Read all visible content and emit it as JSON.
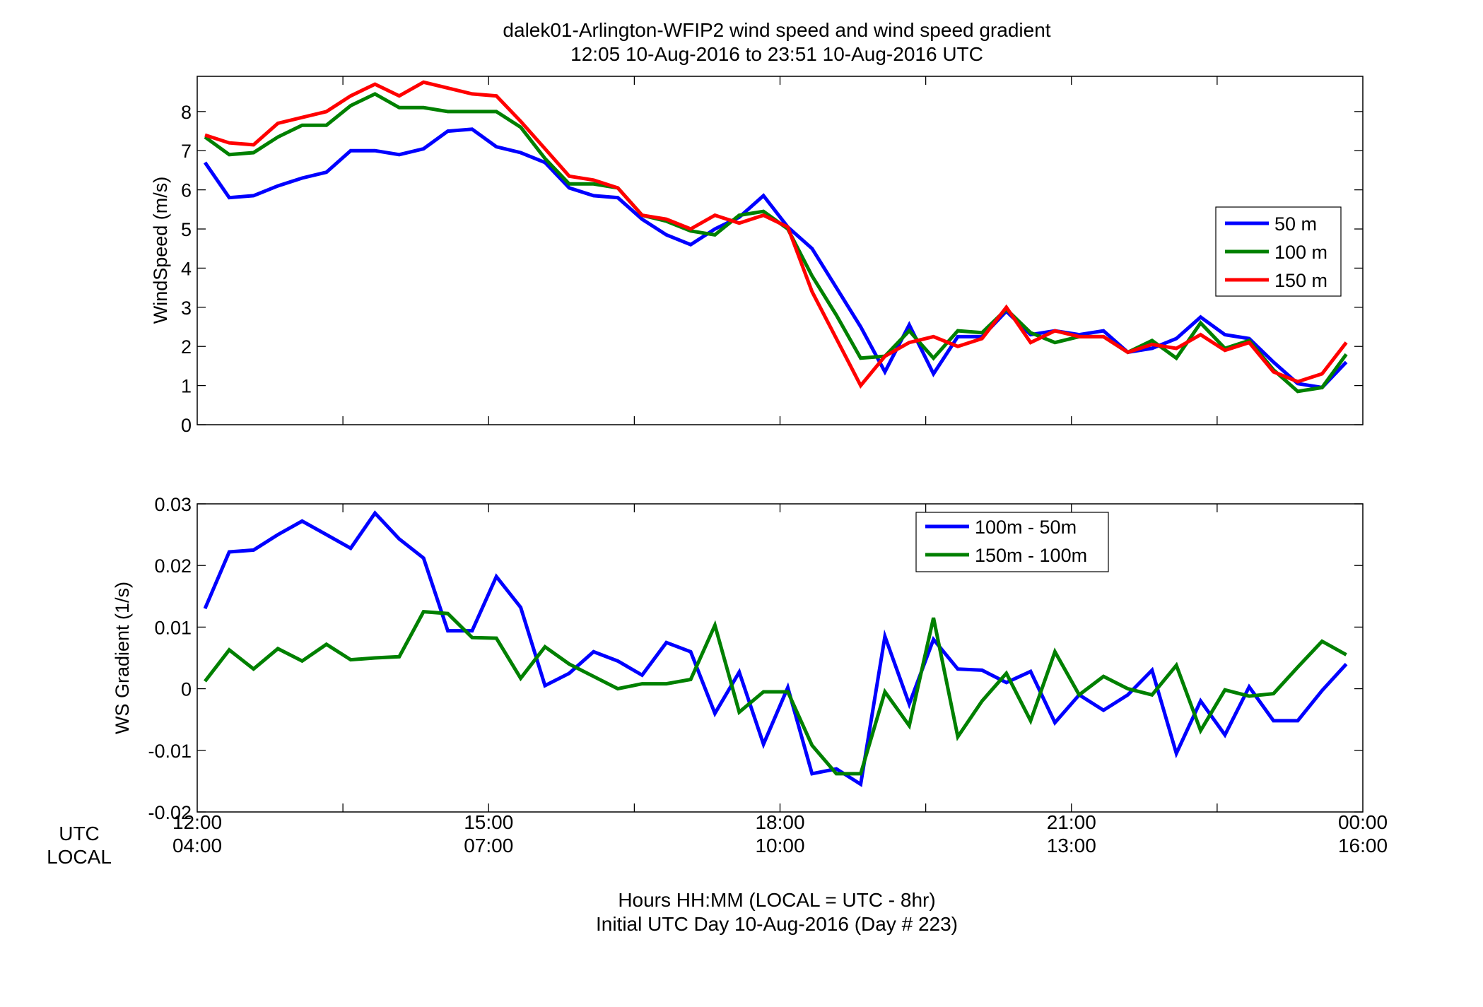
{
  "title_line1": "dalek01-Arlington-WFIP2  wind speed and wind speed gradient",
  "title_line2": "12:05 10-Aug-2016 to 23:51 10-Aug-2016  UTC",
  "row_labels": {
    "utc": "UTC",
    "local": "LOCAL"
  },
  "xlabel_line1": "Hours HH:MM  (LOCAL = UTC - 8hr)",
  "xlabel_line2": "Initial UTC Day 10-Aug-2016 (Day # 223)",
  "colors": {
    "blue": "#0000ff",
    "green": "#008000",
    "red": "#ff0000"
  },
  "chart_data": [
    {
      "type": "line",
      "ylabel": "WindSpeed (m/s)",
      "xlim": [
        12.0,
        24.0
      ],
      "ylim": [
        0,
        8.9
      ],
      "yticks": [
        0,
        1,
        2,
        3,
        4,
        5,
        6,
        7,
        8
      ],
      "ytick_labels": [
        "0",
        "1",
        "2",
        "3",
        "4",
        "5",
        "6",
        "7",
        "8"
      ],
      "grid": false,
      "legend_position": "right-middle",
      "x": [
        12.08,
        12.33,
        12.58,
        12.83,
        13.08,
        13.33,
        13.58,
        13.83,
        14.08,
        14.33,
        14.58,
        14.83,
        15.08,
        15.33,
        15.58,
        15.83,
        16.08,
        16.33,
        16.58,
        16.83,
        17.08,
        17.33,
        17.58,
        17.83,
        18.08,
        18.33,
        18.58,
        18.83,
        19.08,
        19.33,
        19.58,
        19.83,
        20.08,
        20.33,
        20.58,
        20.83,
        21.08,
        21.33,
        21.58,
        21.83,
        22.08,
        22.33,
        22.58,
        22.83,
        23.08,
        23.33,
        23.58,
        23.83
      ],
      "series": [
        {
          "name": "50 m",
          "color": "#0000ff",
          "values": [
            6.7,
            5.8,
            5.85,
            6.1,
            6.3,
            6.45,
            7.0,
            7.0,
            6.9,
            7.05,
            7.5,
            7.55,
            7.1,
            6.95,
            6.7,
            6.05,
            5.85,
            5.8,
            5.25,
            4.85,
            4.6,
            5.0,
            5.3,
            5.85,
            5.05,
            4.5,
            3.5,
            2.5,
            1.35,
            2.55,
            1.3,
            2.25,
            2.25,
            2.9,
            2.3,
            2.4,
            2.3,
            2.4,
            1.85,
            1.95,
            2.2,
            2.75,
            2.3,
            2.2,
            1.6,
            1.05,
            0.95,
            1.6
          ]
        },
        {
          "name": "100 m",
          "color": "#008000",
          "values": [
            7.35,
            6.9,
            6.95,
            7.35,
            7.65,
            7.65,
            8.15,
            8.45,
            8.1,
            8.1,
            8.0,
            8.0,
            8.0,
            7.6,
            6.8,
            6.15,
            6.15,
            6.05,
            5.35,
            5.2,
            4.95,
            4.85,
            5.35,
            5.45,
            5.0,
            3.8,
            2.8,
            1.7,
            1.75,
            2.4,
            1.7,
            2.4,
            2.35,
            2.95,
            2.35,
            2.1,
            2.25,
            2.25,
            1.85,
            2.15,
            1.7,
            2.6,
            1.95,
            2.15,
            1.4,
            0.85,
            0.95,
            1.8
          ]
        },
        {
          "name": "150 m",
          "color": "#ff0000",
          "values": [
            7.4,
            7.2,
            7.15,
            7.7,
            7.85,
            8.0,
            8.4,
            8.7,
            8.4,
            8.75,
            8.6,
            8.45,
            8.4,
            7.75,
            7.05,
            6.35,
            6.25,
            6.05,
            5.35,
            5.25,
            5.0,
            5.35,
            5.15,
            5.35,
            5.05,
            3.4,
            2.2,
            1.0,
            1.75,
            2.1,
            2.25,
            2.0,
            2.2,
            3.0,
            2.1,
            2.4,
            2.25,
            2.25,
            1.85,
            2.05,
            1.95,
            2.3,
            1.9,
            2.1,
            1.35,
            1.1,
            1.3,
            2.1
          ]
        }
      ]
    },
    {
      "type": "line",
      "ylabel": "WS Gradient (1/s)",
      "xlim": [
        12.0,
        24.0
      ],
      "ylim": [
        -0.02,
        0.03
      ],
      "yticks": [
        -0.02,
        -0.01,
        0,
        0.01,
        0.02,
        0.03
      ],
      "ytick_labels": [
        "-0.02",
        "-0.01",
        "0",
        "0.01",
        "0.02",
        "0.03"
      ],
      "xticks": [
        12,
        15,
        18,
        21,
        24
      ],
      "xtick_labels_utc": [
        "12:00",
        "15:00",
        "18:00",
        "21:00",
        "00:00"
      ],
      "xtick_labels_local": [
        "04:00",
        "07:00",
        "10:00",
        "13:00",
        "16:00"
      ],
      "grid": false,
      "legend_position": "top-center",
      "x": [
        12.08,
        12.33,
        12.58,
        12.83,
        13.08,
        13.33,
        13.58,
        13.83,
        14.08,
        14.33,
        14.58,
        14.83,
        15.08,
        15.33,
        15.58,
        15.83,
        16.08,
        16.33,
        16.58,
        16.83,
        17.08,
        17.33,
        17.58,
        17.83,
        18.08,
        18.33,
        18.58,
        18.83,
        19.08,
        19.33,
        19.58,
        19.83,
        20.08,
        20.33,
        20.58,
        20.83,
        21.08,
        21.33,
        21.58,
        21.83,
        22.08,
        22.33,
        22.58,
        22.83,
        23.08,
        23.33,
        23.58,
        23.83
      ],
      "series": [
        {
          "name": "100m - 50m",
          "color": "#0000ff",
          "values": [
            0.013,
            0.0222,
            0.0225,
            0.025,
            0.0272,
            0.025,
            0.0228,
            0.0285,
            0.0243,
            0.0212,
            0.0094,
            0.0094,
            0.0182,
            0.0132,
            0.0005,
            0.0025,
            0.006,
            0.0045,
            0.0022,
            0.0075,
            0.006,
            -0.004,
            0.0027,
            -0.009,
            0.0002,
            -0.0138,
            -0.013,
            -0.0155,
            0.0085,
            -0.0025,
            0.008,
            0.0032,
            0.003,
            0.001,
            0.0028,
            -0.0055,
            -0.001,
            -0.0035,
            -0.001,
            0.003,
            -0.0105,
            -0.002,
            -0.0075,
            0.0003,
            -0.0052,
            -0.0052,
            -0.0003,
            0.004
          ]
        },
        {
          "name": "150m - 100m",
          "color": "#008000",
          "values": [
            0.0012,
            0.0063,
            0.0032,
            0.0065,
            0.0045,
            0.0072,
            0.0047,
            0.005,
            0.0052,
            0.0125,
            0.0122,
            0.0083,
            0.0082,
            0.0017,
            0.0068,
            0.004,
            0.002,
            0.0,
            0.0008,
            0.0008,
            0.0015,
            0.0103,
            -0.0038,
            -0.0005,
            -0.0005,
            -0.0092,
            -0.0138,
            -0.0138,
            -0.0005,
            -0.006,
            0.0115,
            -0.0078,
            -0.002,
            0.0025,
            -0.0052,
            0.006,
            -0.001,
            0.002,
            0.0,
            -0.001,
            0.0038,
            -0.0068,
            -0.0002,
            -0.0012,
            -0.0008,
            0.0035,
            0.0077,
            0.0055
          ]
        }
      ]
    }
  ]
}
